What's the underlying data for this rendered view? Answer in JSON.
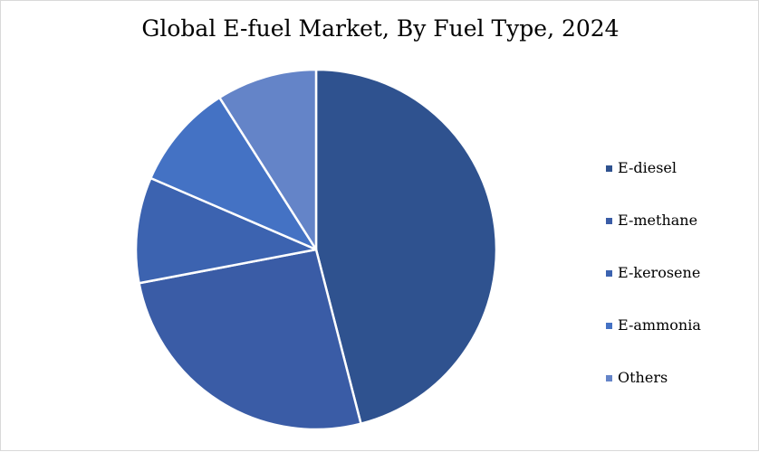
{
  "chart_data": {
    "type": "pie",
    "title": "Global E-fuel Market, By Fuel Type, 2024",
    "categories": [
      "E-diesel",
      "E-methane",
      "E-kerosene",
      "E-ammonia",
      "Others"
    ],
    "values": [
      46,
      26,
      9.5,
      9.5,
      9
    ],
    "colors": [
      "#2f528f",
      "#3a5ca6",
      "#3c63b0",
      "#4472c4",
      "#6484c8"
    ],
    "legend": "right",
    "slice_border_color": "#ffffff"
  }
}
